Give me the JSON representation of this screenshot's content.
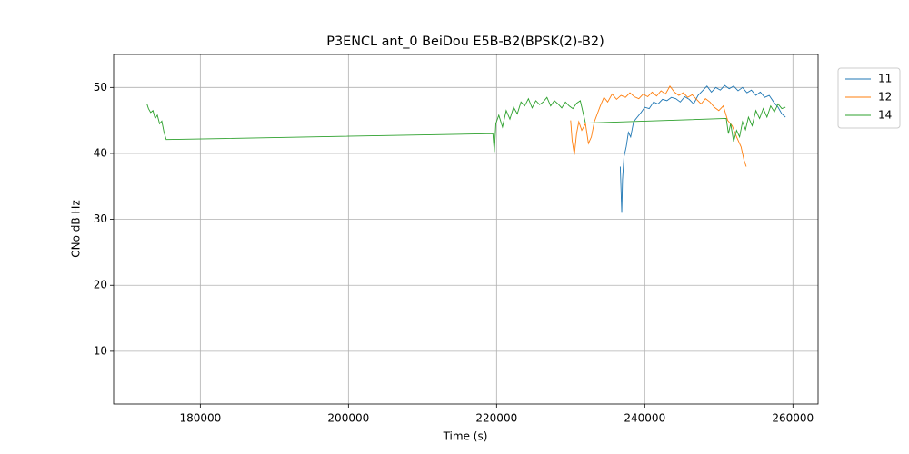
{
  "chart_data": {
    "type": "line",
    "title": "P3ENCL ant_0 BeiDou E5B-B2(BPSK(2)-B2)",
    "xlabel": "Time (s)",
    "ylabel": "CNo dB Hz",
    "xlim": [
      168300,
      263400
    ],
    "ylim": [
      2,
      55
    ],
    "xticks": [
      180000,
      200000,
      220000,
      240000,
      260000
    ],
    "yticks": [
      10,
      20,
      30,
      40,
      50
    ],
    "grid": true,
    "legend": "outside right",
    "series": [
      {
        "name": "11",
        "color": "#1f77b4",
        "x": [
          236700,
          236800,
          236900,
          237000,
          237200,
          237500,
          237800,
          238100,
          238500,
          239000,
          239500,
          240000,
          240600,
          241200,
          241800,
          242400,
          243000,
          243600,
          244200,
          244800,
          245400,
          246000,
          246600,
          247200,
          247800,
          248400,
          249000,
          249600,
          250200,
          250800,
          251400,
          252000,
          252600,
          253200,
          253800,
          254400,
          255000,
          255600,
          256200,
          256800,
          257400,
          258000,
          258500,
          259000
        ],
        "values": [
          38,
          34.5,
          31,
          36,
          39.5,
          41,
          43.2,
          42.5,
          44.8,
          45.5,
          46.2,
          47,
          46.8,
          47.8,
          47.5,
          48.2,
          48,
          48.5,
          48.3,
          47.8,
          48.6,
          48.2,
          47.5,
          48.8,
          49.5,
          50.2,
          49.3,
          50,
          49.6,
          50.3,
          49.8,
          50.2,
          49.5,
          50,
          49.2,
          49.6,
          48.8,
          49.3,
          48.5,
          48.8,
          47.8,
          47,
          46,
          45.5
        ]
      },
      {
        "name": "12",
        "color": "#ff7f0e",
        "x": [
          230000,
          230200,
          230500,
          230800,
          231100,
          231500,
          232000,
          232400,
          232800,
          233200,
          233600,
          234000,
          234500,
          235000,
          235600,
          236200,
          236800,
          237400,
          238000,
          238600,
          239200,
          239800,
          240400,
          241000,
          241600,
          242200,
          242800,
          243400,
          244000,
          244600,
          245200,
          245800,
          246400,
          247000,
          247600,
          248200,
          248800,
          249400,
          250000,
          250600,
          251200,
          251800,
          252400,
          253000,
          253400,
          253700
        ],
        "values": [
          45,
          42,
          39.8,
          43,
          44.8,
          43.5,
          44.5,
          41.5,
          42.5,
          44.8,
          46,
          47.2,
          48.5,
          47.8,
          49,
          48.2,
          48.8,
          48.5,
          49.2,
          48.6,
          48.3,
          49,
          48.6,
          49.3,
          48.7,
          49.5,
          49,
          50.2,
          49.3,
          48.8,
          49.2,
          48.5,
          48.9,
          48.2,
          47.5,
          48.3,
          47.8,
          47,
          46.5,
          47.2,
          45,
          44.2,
          42.5,
          41,
          39,
          38
        ]
      },
      {
        "name": "14",
        "color": "#2ca02c",
        "x": [
          172800,
          173000,
          173300,
          173600,
          173900,
          174200,
          174500,
          174800,
          175100,
          175400,
          219500,
          219700,
          219900,
          220300,
          220800,
          221300,
          221800,
          222300,
          222800,
          223300,
          223800,
          224300,
          224800,
          225300,
          225800,
          226300,
          226800,
          227300,
          227800,
          228300,
          228800,
          229300,
          229800,
          230300,
          230800,
          231300,
          232000,
          251000,
          251300,
          251600,
          252000,
          252400,
          252800,
          253200,
          253600,
          254000,
          254500,
          255000,
          255500,
          256000,
          256500,
          257000,
          257500,
          258000,
          258500,
          259000
        ],
        "values": [
          47.5,
          46.8,
          46.2,
          46.5,
          45.3,
          45.8,
          44.5,
          44.9,
          43.2,
          42.1,
          43,
          40.2,
          44.5,
          45.8,
          44,
          46.5,
          45.2,
          47,
          46,
          47.8,
          47.2,
          48.3,
          46.9,
          48,
          47.4,
          47.8,
          48.5,
          47.2,
          48,
          47.5,
          46.9,
          47.8,
          47.2,
          46.8,
          47.6,
          48,
          44.6,
          45.3,
          43,
          44.5,
          41.8,
          43.5,
          42.5,
          44.8,
          43.6,
          45.5,
          44.2,
          46.5,
          45.3,
          46.8,
          45.5,
          47.2,
          46.3,
          47.5,
          46.8,
          47
        ]
      }
    ]
  }
}
